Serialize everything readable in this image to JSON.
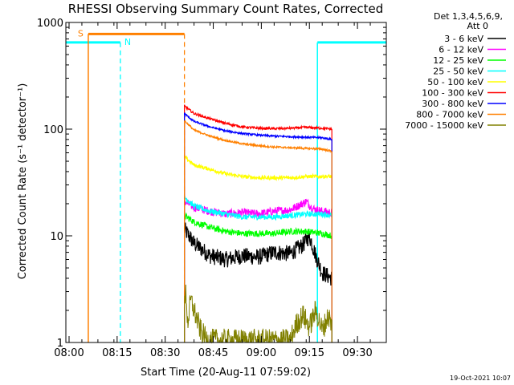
{
  "chart_data": {
    "type": "line",
    "title": "RHESSI Observing Summary Count Rates, Corrected",
    "xlabel": "Start Time (20-Aug-11 07:59:02)",
    "ylabel": "Corrected Count Rate (s⁻¹ detector⁻¹)",
    "yscale": "log",
    "ylim": [
      1,
      1000
    ],
    "xlim_minutes": [
      0,
      100
    ],
    "x_unit": "minutes after start time",
    "x_tick_labels": [
      "08:00",
      "08:15",
      "08:30",
      "08:45",
      "09:00",
      "09:15",
      "09:30"
    ],
    "x_ticks": [
      1,
      16,
      31,
      46,
      61,
      76,
      91
    ],
    "y_tick_labels": [
      "1",
      "10",
      "100",
      "1000"
    ],
    "y_ticks": [
      1,
      10,
      100,
      1000
    ],
    "legend_header": [
      "Det 1,3,4,5,6,9,",
      "Att 0"
    ],
    "legend_position": "right",
    "flag_labels": {
      "saa": "S",
      "night": "N"
    },
    "flags": {
      "night": {
        "value": 650,
        "color": "#00ffff",
        "intervals": [
          [
            0,
            17
          ],
          [
            78.5,
            100
          ]
        ]
      },
      "saa": {
        "value": 780,
        "color": "#ff8000",
        "intervals": [
          [
            7,
            37
          ]
        ]
      },
      "data_gap_edges": [
        37,
        83
      ]
    },
    "series": [
      {
        "name": "3 - 6 keV",
        "color": "#000000",
        "x": [
          37,
          40,
          45,
          50,
          55,
          60,
          65,
          70,
          74,
          76,
          78,
          80,
          83
        ],
        "values": [
          11.5,
          8.5,
          6.5,
          6.0,
          6.5,
          6.3,
          7.0,
          6.8,
          8.2,
          10.0,
          6.5,
          4.5,
          4.0
        ]
      },
      {
        "name": "6 - 12 keV",
        "color": "#ff00ff",
        "x": [
          37,
          40,
          45,
          50,
          55,
          60,
          65,
          70,
          73,
          75,
          77,
          80,
          83
        ],
        "values": [
          21.0,
          18.5,
          17.0,
          16.0,
          16.5,
          16.0,
          17.0,
          17.5,
          19.5,
          21.0,
          18.0,
          17.0,
          16.5
        ]
      },
      {
        "name": "12 - 25 keV",
        "color": "#00ff00",
        "x": [
          37,
          40,
          45,
          50,
          55,
          60,
          65,
          70,
          75,
          80,
          83
        ],
        "values": [
          15.5,
          13.5,
          12.0,
          11.0,
          10.5,
          10.5,
          10.5,
          11.0,
          11.0,
          10.5,
          10.0
        ]
      },
      {
        "name": "25 - 50 keV",
        "color": "#00ffff",
        "x": [
          37,
          40,
          45,
          50,
          55,
          60,
          65,
          70,
          75,
          80,
          83
        ],
        "values": [
          23.0,
          19.0,
          17.0,
          16.0,
          15.0,
          15.0,
          15.0,
          15.5,
          16.0,
          16.0,
          15.5
        ]
      },
      {
        "name": "50 - 100 keV",
        "color": "#ffff00",
        "x": [
          37,
          40,
          45,
          50,
          55,
          60,
          65,
          70,
          75,
          80,
          83
        ],
        "values": [
          55,
          46,
          42,
          38,
          36,
          35,
          35,
          35,
          36,
          36,
          36
        ]
      },
      {
        "name": "100 - 300 keV",
        "color": "#ff0000",
        "x": [
          37,
          40,
          45,
          50,
          55,
          60,
          65,
          70,
          75,
          80,
          83
        ],
        "values": [
          165,
          140,
          125,
          113,
          105,
          102,
          101,
          102,
          104,
          102,
          100
        ]
      },
      {
        "name": "300 - 800 keV",
        "color": "#0000ff",
        "x": [
          37,
          40,
          45,
          50,
          55,
          60,
          65,
          70,
          75,
          80,
          83
        ],
        "values": [
          140,
          118,
          105,
          96,
          91,
          88,
          86,
          85,
          84,
          83,
          80
        ]
      },
      {
        "name": "800 - 7000 keV",
        "color": "#ff8000",
        "x": [
          37,
          40,
          45,
          50,
          55,
          60,
          65,
          70,
          75,
          80,
          83
        ],
        "values": [
          120,
          98,
          86,
          78,
          73,
          70,
          68,
          67,
          66,
          65,
          62
        ]
      },
      {
        "name": "7000 - 15000 keV",
        "color": "#808000",
        "x": [
          37,
          37.5,
          38,
          39,
          40,
          42,
          44,
          70,
          72,
          74,
          76,
          78,
          80,
          82,
          83
        ],
        "values": [
          2.0,
          3.0,
          1.5,
          2.5,
          2.0,
          1.3,
          1.05,
          1.05,
          1.5,
          1.8,
          1.4,
          2.0,
          1.3,
          1.8,
          1.4
        ]
      }
    ]
  },
  "footer_date": "19-Oct-2021 10:07"
}
